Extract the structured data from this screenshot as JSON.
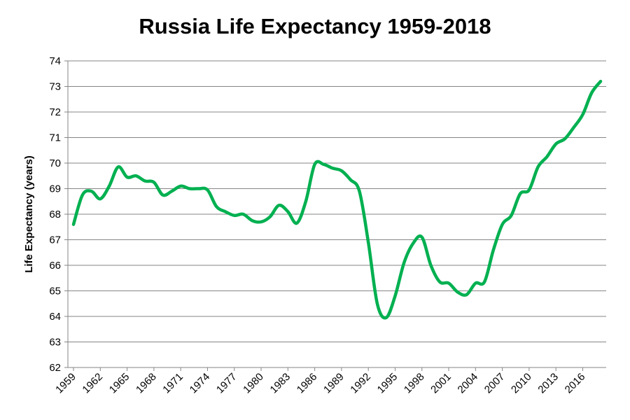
{
  "chart_data": {
    "type": "line",
    "title": "Russia Life Expectancy 1959-2018",
    "xlabel": "",
    "ylabel": "Life Expectancy (years)",
    "ylim": [
      62,
      74
    ],
    "yticks": [
      "62",
      "63",
      "64",
      "65",
      "66",
      "67",
      "68",
      "69",
      "70",
      "71",
      "72",
      "73",
      "74"
    ],
    "xlim": [
      1959,
      2018
    ],
    "xticks": [
      "1959",
      "1962",
      "1965",
      "1968",
      "1971",
      "1974",
      "1977",
      "1980",
      "1983",
      "1986",
      "1989",
      "1992",
      "1995",
      "1998",
      "2001",
      "2004",
      "2007",
      "2010",
      "2013",
      "2016"
    ],
    "grid": "horizontal",
    "legend": "none",
    "line_color": "#00B050",
    "gridline_color": "#868686",
    "series": [
      {
        "x": [
          1959,
          1960,
          1961,
          1962,
          1963,
          1964,
          1965,
          1966,
          1967,
          1968,
          1969,
          1970,
          1971,
          1972,
          1973,
          1974,
          1975,
          1976,
          1977,
          1978,
          1979,
          1980,
          1981,
          1982,
          1983,
          1984,
          1985,
          1986,
          1987,
          1988,
          1989,
          1990,
          1991,
          1992,
          1993,
          1994,
          1995,
          1996,
          1997,
          1998,
          1999,
          2000,
          2001,
          2002,
          2003,
          2004,
          2005,
          2006,
          2007,
          2008,
          2009,
          2010,
          2011,
          2012,
          2013,
          2014,
          2015,
          2016,
          2017,
          2018
        ],
        "y": [
          67.6,
          68.75,
          68.9,
          68.6,
          69.1,
          69.85,
          69.45,
          69.5,
          69.3,
          69.25,
          68.75,
          68.9,
          69.1,
          69.0,
          69.0,
          68.95,
          68.3,
          68.1,
          67.95,
          68.0,
          67.75,
          67.7,
          67.9,
          68.35,
          68.1,
          67.65,
          68.5,
          69.95,
          69.95,
          69.8,
          69.7,
          69.35,
          68.9,
          66.9,
          64.5,
          63.95,
          64.8,
          66.1,
          66.85,
          67.1,
          66.0,
          65.35,
          65.3,
          64.95,
          64.85,
          65.3,
          65.35,
          66.6,
          67.6,
          67.95,
          68.8,
          68.95,
          69.85,
          70.25,
          70.75,
          70.95,
          71.4,
          71.9,
          72.75,
          73.2
        ]
      }
    ]
  }
}
